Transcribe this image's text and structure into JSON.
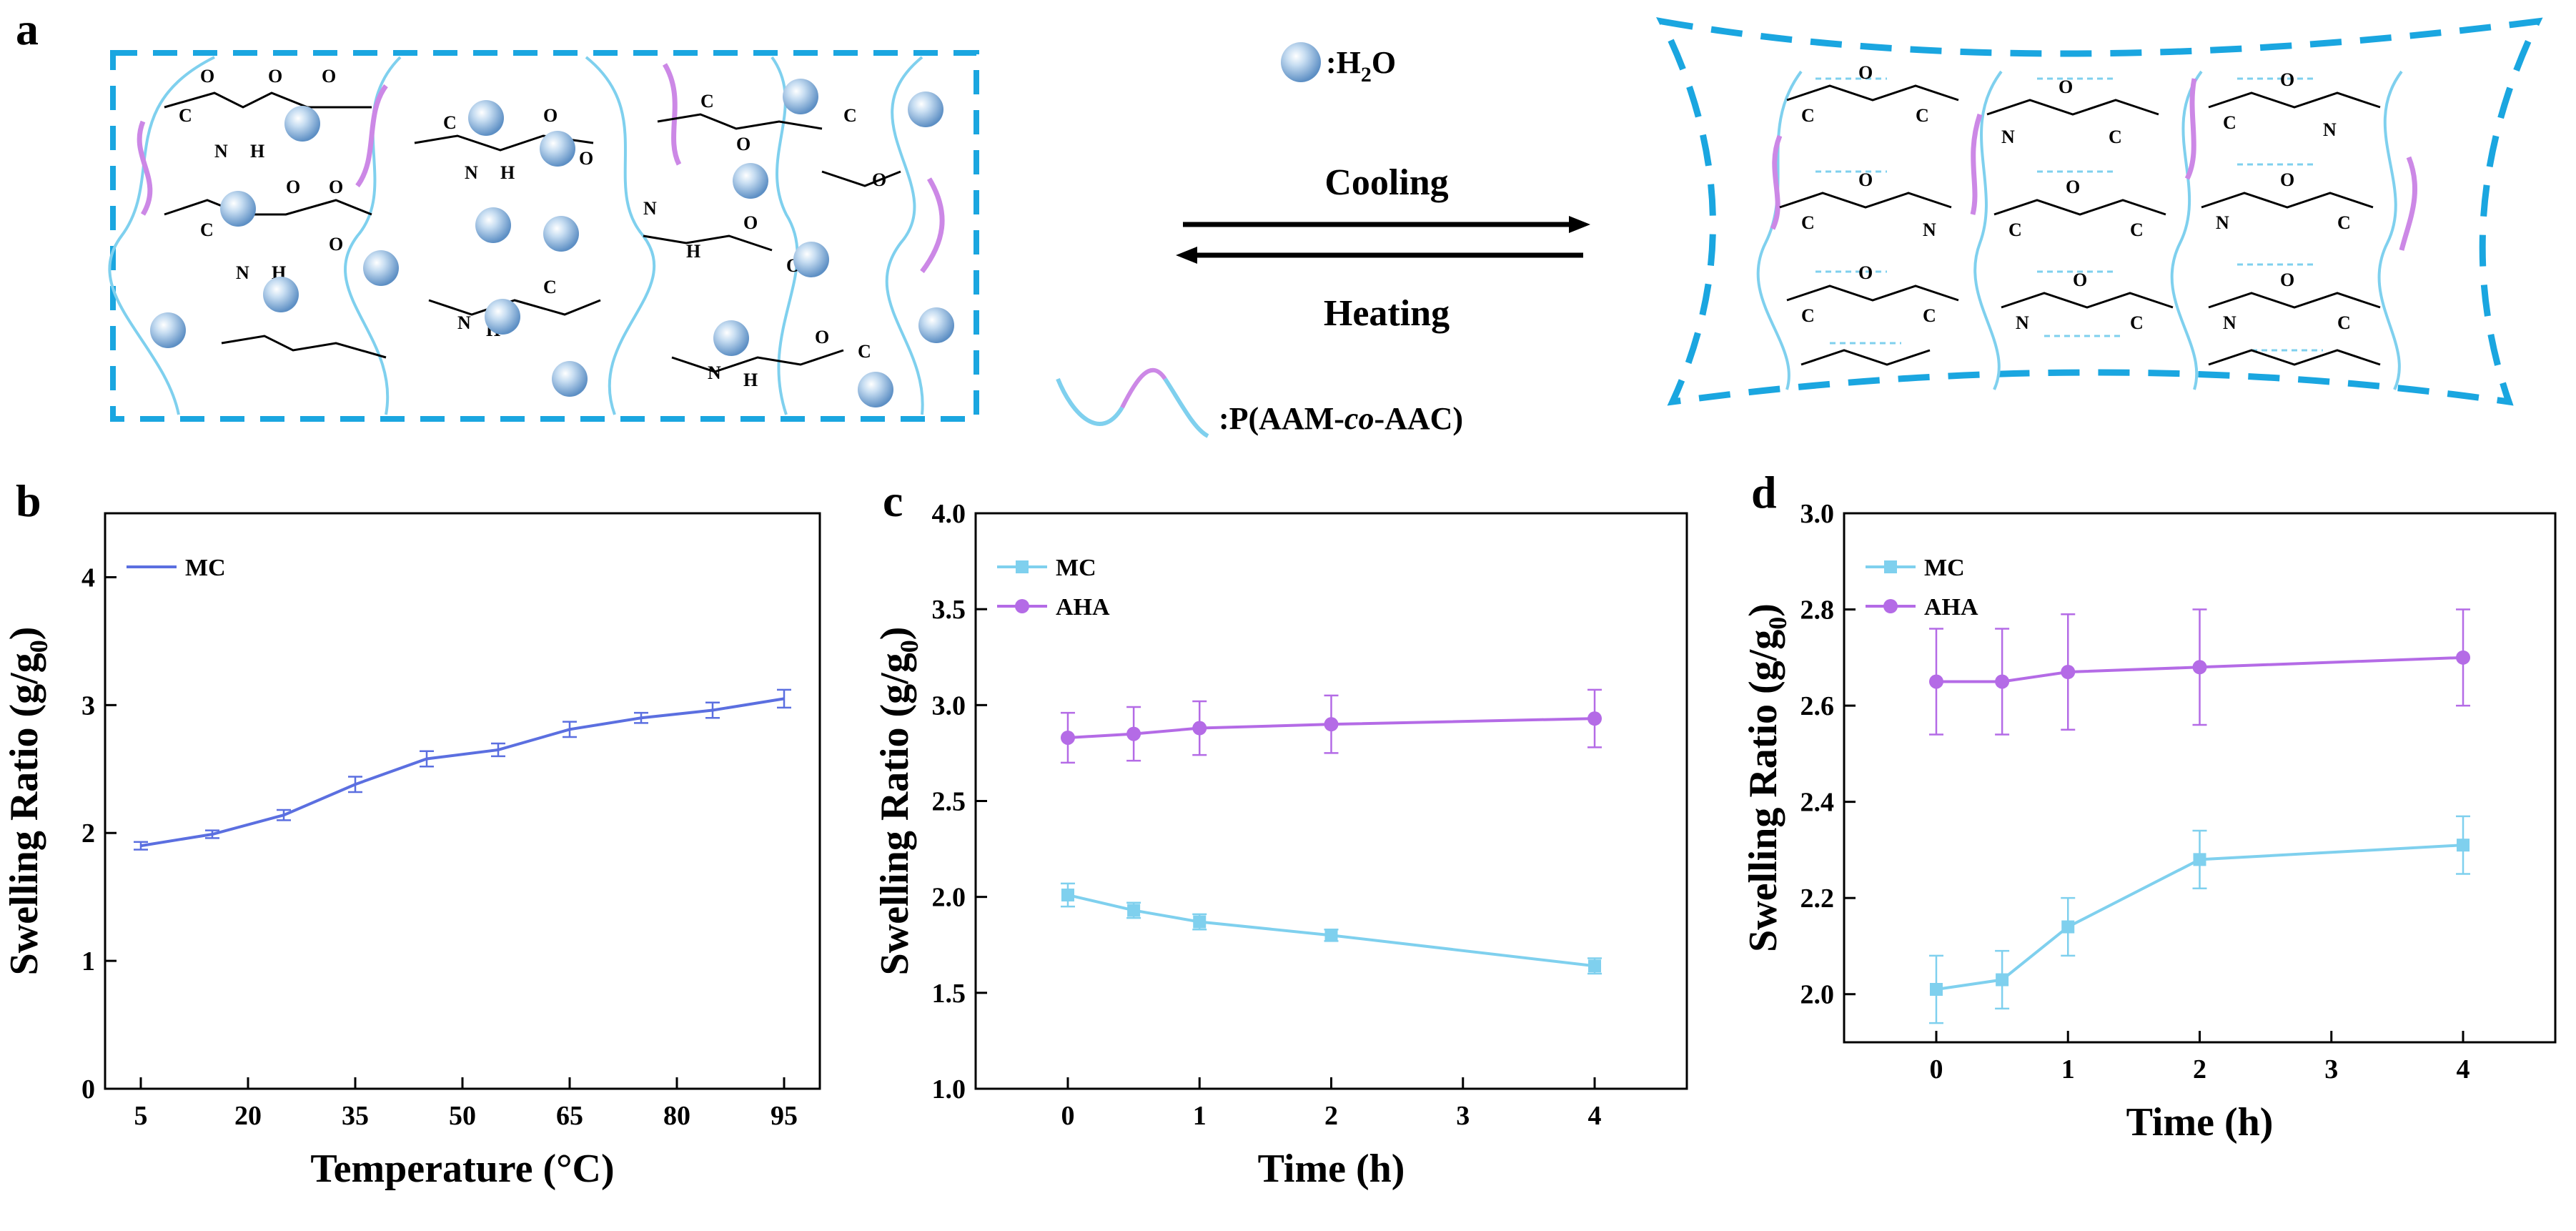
{
  "panel_a": {
    "label": "a",
    "water_legend": {
      "prefix": ":H",
      "sub": "2",
      "suffix": "O"
    },
    "polymer_legend": {
      "prefix": ":P(AAM-",
      "italic": "co",
      "suffix": "-AAC)"
    },
    "arrow_forward_label": "Cooling",
    "arrow_backward_label": "Heating"
  },
  "colors": {
    "mc_b": "#5b6fe0",
    "mc": "#7fd0ee",
    "aha": "#b46be6",
    "dash_blue": "#1aa6e0",
    "chain_blue": "#7fd0ee",
    "chain_pink": "#cc88e6"
  },
  "chart_data": [
    {
      "panel": "b",
      "type": "line",
      "xlabel": "Temperature (°C)",
      "ylabel": {
        "prefix": "Swelling Ratio (g/g",
        "sub": "0",
        "suffix": ")"
      },
      "xlim": [
        0,
        100
      ],
      "ylim": [
        0,
        4.5
      ],
      "xticks": [
        5,
        20,
        35,
        50,
        65,
        80,
        95
      ],
      "yticks": [
        0,
        1,
        2,
        3,
        4
      ],
      "legend": "top-left",
      "series": [
        {
          "name": "MC",
          "marker": "none",
          "x": [
            5,
            15,
            25,
            35,
            45,
            55,
            65,
            75,
            85,
            95
          ],
          "y": [
            1.9,
            1.99,
            2.14,
            2.38,
            2.58,
            2.65,
            2.81,
            2.9,
            2.96,
            3.05
          ],
          "err": [
            0.03,
            0.03,
            0.04,
            0.06,
            0.06,
            0.05,
            0.06,
            0.04,
            0.06,
            0.07
          ]
        }
      ]
    },
    {
      "panel": "c",
      "type": "line",
      "xlabel": "Time (h)",
      "ylabel": {
        "prefix": "Swelling Ratio (g/g",
        "sub": "0",
        "suffix": ")"
      },
      "xlim": [
        -0.7,
        4.7
      ],
      "ylim": [
        1.0,
        4.0
      ],
      "xticks": [
        0,
        1,
        2,
        3,
        4
      ],
      "yticks": [
        1.0,
        1.5,
        2.0,
        2.5,
        3.0,
        3.5,
        4.0
      ],
      "legend": "top-left",
      "series": [
        {
          "name": "MC",
          "marker": "square",
          "x": [
            0,
            0.5,
            1,
            2,
            4
          ],
          "y": [
            2.01,
            1.93,
            1.87,
            1.8,
            1.64
          ],
          "err": [
            0.06,
            0.04,
            0.04,
            0.03,
            0.04
          ]
        },
        {
          "name": "AHA",
          "marker": "circle",
          "x": [
            0,
            0.5,
            1,
            2,
            4
          ],
          "y": [
            2.83,
            2.85,
            2.88,
            2.9,
            2.93
          ],
          "err": [
            0.13,
            0.14,
            0.14,
            0.15,
            0.15
          ]
        }
      ]
    },
    {
      "panel": "d",
      "type": "line",
      "xlabel": "Time (h)",
      "ylabel": {
        "prefix": "Swelling Ratio (g/g",
        "sub": "0",
        "suffix": ")"
      },
      "xlim": [
        -0.7,
        4.7
      ],
      "ylim": [
        1.9,
        3.0
      ],
      "xticks": [
        0,
        1,
        2,
        3,
        4
      ],
      "yticks": [
        2.0,
        2.2,
        2.4,
        2.6,
        2.8,
        3.0
      ],
      "legend": "top-left",
      "series": [
        {
          "name": "MC",
          "marker": "square",
          "x": [
            0,
            0.5,
            1,
            2,
            4
          ],
          "y": [
            2.01,
            2.03,
            2.14,
            2.28,
            2.31
          ],
          "err": [
            0.07,
            0.06,
            0.06,
            0.06,
            0.06
          ]
        },
        {
          "name": "AHA",
          "marker": "circle",
          "x": [
            0,
            0.5,
            1,
            2,
            4
          ],
          "y": [
            2.65,
            2.65,
            2.67,
            2.68,
            2.7
          ],
          "err": [
            0.11,
            0.11,
            0.12,
            0.12,
            0.1
          ]
        }
      ]
    }
  ]
}
